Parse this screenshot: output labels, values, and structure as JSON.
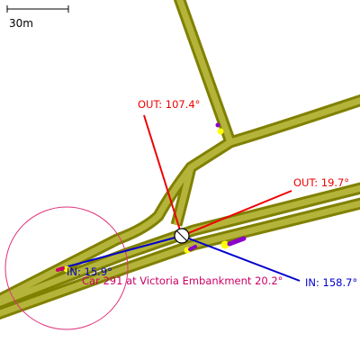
{
  "scale_bar": {
    "label": "30m"
  },
  "colors": {
    "road_outer": "#808000",
    "road_inner": "#b4b43a",
    "out_line": "#ee0000",
    "in_line": "#0000cc",
    "vehicle": "#cc0066",
    "vehicle_circle": "#e0307a",
    "marker_yellow": "#ffff00",
    "marker_purple": "#8a00c8"
  },
  "headings": {
    "out": [
      {
        "label": "OUT: 107.4°",
        "degrees": 107.4
      },
      {
        "label": "OUT: 19.7°",
        "degrees": 19.7
      }
    ],
    "in": [
      {
        "label": "IN: 15.9°",
        "degrees": 15.9
      },
      {
        "label": "IN: 158.7°",
        "degrees": 158.7
      }
    ]
  },
  "vehicle": {
    "label": "Car 291 at Victoria Embankment 20.2°"
  }
}
